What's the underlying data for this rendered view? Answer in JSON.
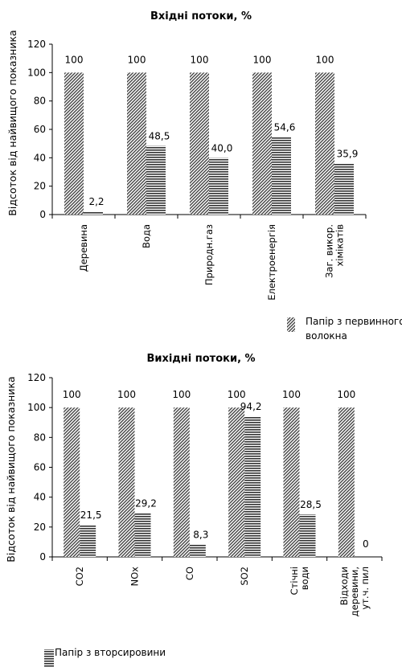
{
  "chart_data": [
    {
      "type": "bar",
      "title": "Вхідні потоки, %",
      "ylabel": "Відсоток від найвищого показника",
      "ylim": [
        0,
        120
      ],
      "yticks": [
        0,
        20,
        40,
        60,
        80,
        100,
        120
      ],
      "categories": [
        "Деревина",
        "Вода",
        "Природн.газ",
        "Електроенергія",
        "Заг. викор.\nхімікатів"
      ],
      "series": [
        {
          "name": "Папір з первинного волокна",
          "values": [
            100,
            100,
            100,
            100,
            100
          ],
          "labels": [
            "100",
            "100",
            "100",
            "100",
            "100"
          ],
          "pattern": "diag"
        },
        {
          "values": [
            2.2,
            48.5,
            40.0,
            54.6,
            35.9
          ],
          "labels": [
            "2,2",
            "48,5",
            "40,0",
            "54,6",
            "35,9"
          ],
          "pattern": "horiz"
        }
      ],
      "legend": {
        "items": [
          "Папір з первинного",
          "волокна"
        ],
        "pattern": "diag"
      }
    },
    {
      "type": "bar",
      "title": "Вихідні потоки, %",
      "ylabel": "Відсоток від найвищого показника",
      "ylim": [
        0,
        120
      ],
      "yticks": [
        0,
        20,
        40,
        60,
        80,
        100,
        120
      ],
      "categories": [
        "CO2",
        "NOx",
        "CO",
        "SO2",
        "Стічні\nводи",
        "Відходи\nдеревини,\nут.ч. пил"
      ],
      "series": [
        {
          "values": [
            100,
            100,
            100,
            100,
            100,
            100
          ],
          "labels": [
            "100",
            "100",
            "100",
            "100",
            "100",
            "100"
          ],
          "pattern": "diag"
        },
        {
          "name": "Папір з вторсировини",
          "values": [
            21.5,
            29.2,
            8.3,
            94.2,
            28.5,
            0
          ],
          "labels": [
            "21,5",
            "29,2",
            "8,3",
            "94,2",
            "28,5",
            "0"
          ],
          "pattern": "horiz"
        }
      ],
      "legend": {
        "items": [
          "Папір з вторсировини"
        ],
        "pattern": "horiz"
      }
    }
  ]
}
